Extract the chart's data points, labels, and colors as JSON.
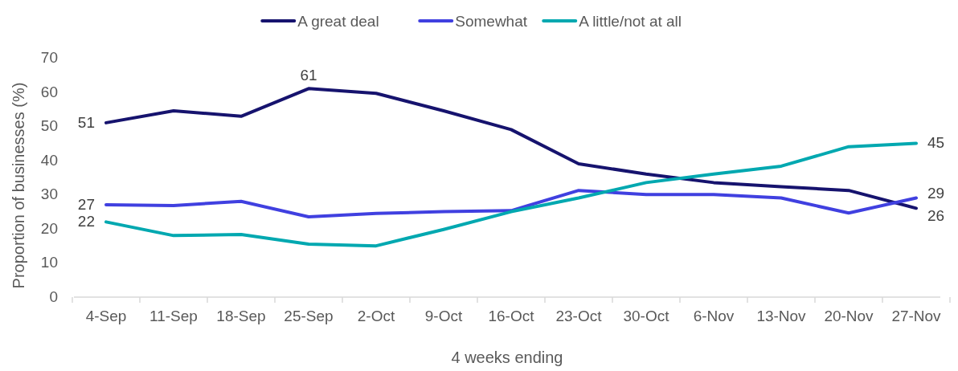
{
  "chart_data": {
    "type": "line",
    "xlabel": "4 weeks ending",
    "ylabel": "Proportion of businesses (%)",
    "categories": [
      "4-Sep",
      "11-Sep",
      "18-Sep",
      "25-Sep",
      "2-Oct",
      "9-Oct",
      "16-Oct",
      "23-Oct",
      "30-Oct",
      "6-Nov",
      "13-Nov",
      "20-Nov",
      "27-Nov"
    ],
    "ylim": [
      0,
      70
    ],
    "yticks": [
      0,
      10,
      20,
      30,
      40,
      50,
      60,
      70
    ],
    "grid": false,
    "legend": "top",
    "marker": "none",
    "line_style": "solid",
    "series": [
      {
        "name": "A great deal",
        "color": "#16136e",
        "values": [
          51,
          54.5,
          52.9,
          61,
          59.6,
          54.5,
          49,
          39,
          36,
          33.5,
          32.3,
          31.2,
          26
        ],
        "value_labels": [
          "51",
          null,
          null,
          "61",
          null,
          null,
          null,
          null,
          null,
          null,
          null,
          null,
          "26"
        ]
      },
      {
        "name": "Somewhat",
        "color": "#4040e0",
        "values": [
          27,
          26.8,
          28,
          23.5,
          24.5,
          25,
          25.3,
          31.2,
          30,
          30,
          29,
          24.6,
          29
        ],
        "value_labels": [
          "27",
          null,
          null,
          null,
          null,
          null,
          null,
          null,
          null,
          null,
          null,
          null,
          "29"
        ]
      },
      {
        "name": "A little/not at all",
        "color": "#00a8b0",
        "values": [
          22,
          18,
          18.3,
          15.5,
          15,
          19.8,
          25,
          29,
          33.5,
          36,
          38.3,
          44,
          45
        ],
        "value_labels": [
          "22",
          null,
          null,
          null,
          null,
          null,
          null,
          null,
          null,
          null,
          null,
          null,
          "45"
        ]
      }
    ]
  }
}
